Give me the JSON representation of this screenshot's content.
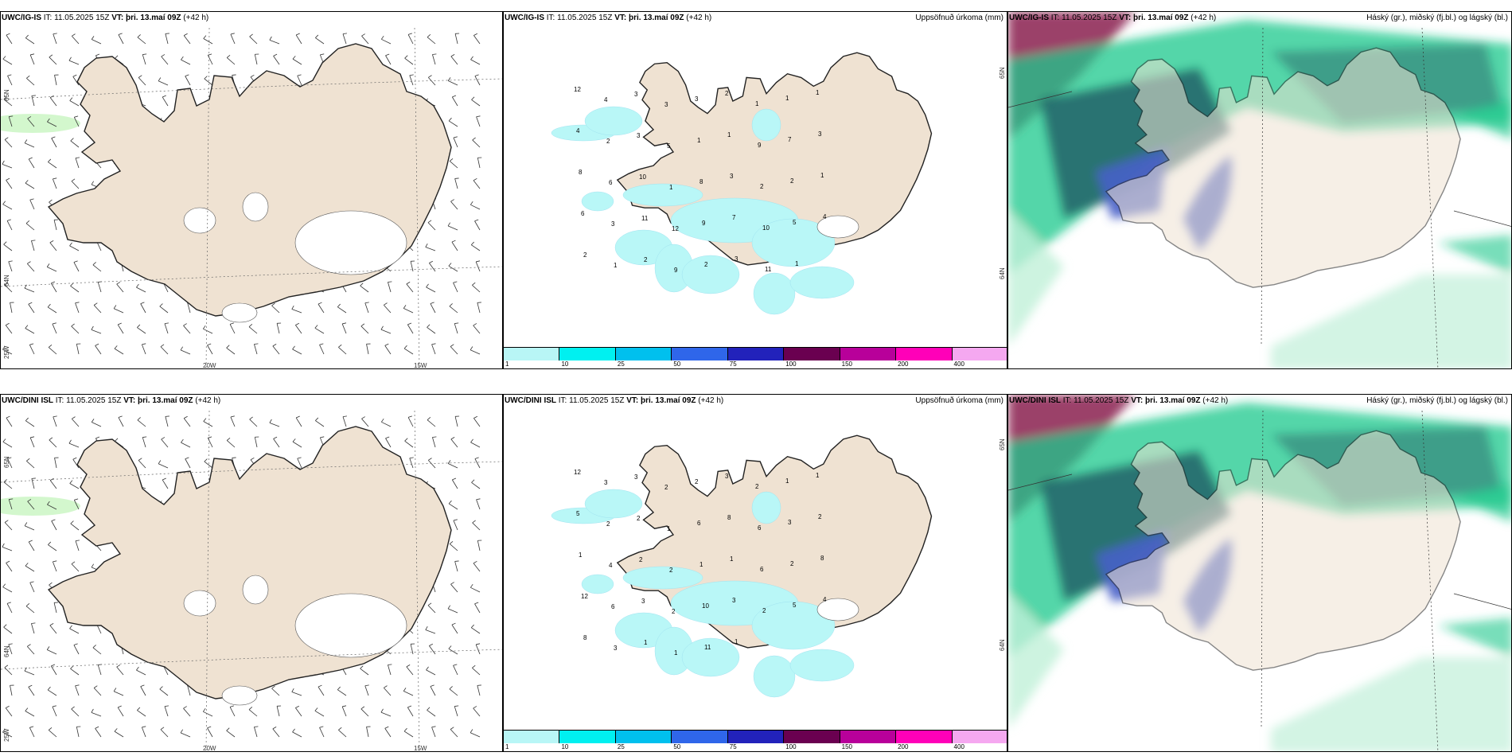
{
  "rows": [
    {
      "model": "UWC/IG-IS",
      "it_label": "IT:",
      "it_value": "11.05.2025 15Z",
      "vt_label": "VT:",
      "vt_value": "þri. 13.maí 09Z",
      "lead": "(+42 h)",
      "numbers": [
        "12",
        "4",
        "3",
        "3",
        "3",
        "2",
        "1",
        "1",
        "1",
        "4",
        "2",
        "3",
        "5",
        "1",
        "1",
        "9",
        "7",
        "3",
        "8",
        "6",
        "10",
        "1",
        "8",
        "3",
        "2",
        "2",
        "1",
        "6",
        "3",
        "11",
        "12",
        "9",
        "7",
        "10",
        "5",
        "4",
        "2",
        "1",
        "2",
        "9",
        "2",
        "3",
        "11",
        "1"
      ]
    },
    {
      "model": "UWC/DINI ISL",
      "it_label": "IT:",
      "it_value": "11.05.2025 15Z",
      "vt_label": "VT:",
      "vt_value": "þri. 13.maí 09Z",
      "lead": "(+42 h)",
      "numbers": [
        "12",
        "3",
        "3",
        "2",
        "2",
        "3",
        "2",
        "1",
        "1",
        "5",
        "2",
        "2",
        "1",
        "6",
        "8",
        "6",
        "3",
        "2",
        "1",
        "4",
        "2",
        "2",
        "1",
        "1",
        "6",
        "2",
        "8",
        "12",
        "6",
        "3",
        "2",
        "10",
        "3",
        "2",
        "5",
        "4",
        "8",
        "3",
        "1",
        "1",
        "11",
        "1"
      ]
    }
  ],
  "precip_title": "Uppsöfnuð úrkoma (mm)",
  "cloud_title": "Háský (gr.), miðský (fj.bl.) og lágský (bl.)",
  "axis_labels": {
    "lat_65N": "65N",
    "lat_64N": "64N",
    "lon_25W": "25W",
    "lon_20W": "20W",
    "lon_15W": "15W",
    "lat_65N_right": "65N",
    "lat_64N_right": "64N"
  },
  "legend": {
    "labels": [
      "1",
      "10",
      "25",
      "50",
      "75",
      "100",
      "150",
      "200",
      "400"
    ],
    "colors": [
      "#b8f6f6",
      "#00f0f0",
      "#00c0ee",
      "#2f66ea",
      "#2222bb",
      "#6a0050",
      "#b8009a",
      "#ff00b8",
      "#f5a8f0"
    ]
  },
  "colors": {
    "land": "#efe2d2",
    "precip_light": "#b9f7f7",
    "cloud_high": "#c0f0d8",
    "cloud_mid": "#1ec88c",
    "cloud_low": "#4860c8",
    "cloud_dark": "#1e5a64",
    "cloud_maroon": "#8a2050"
  }
}
